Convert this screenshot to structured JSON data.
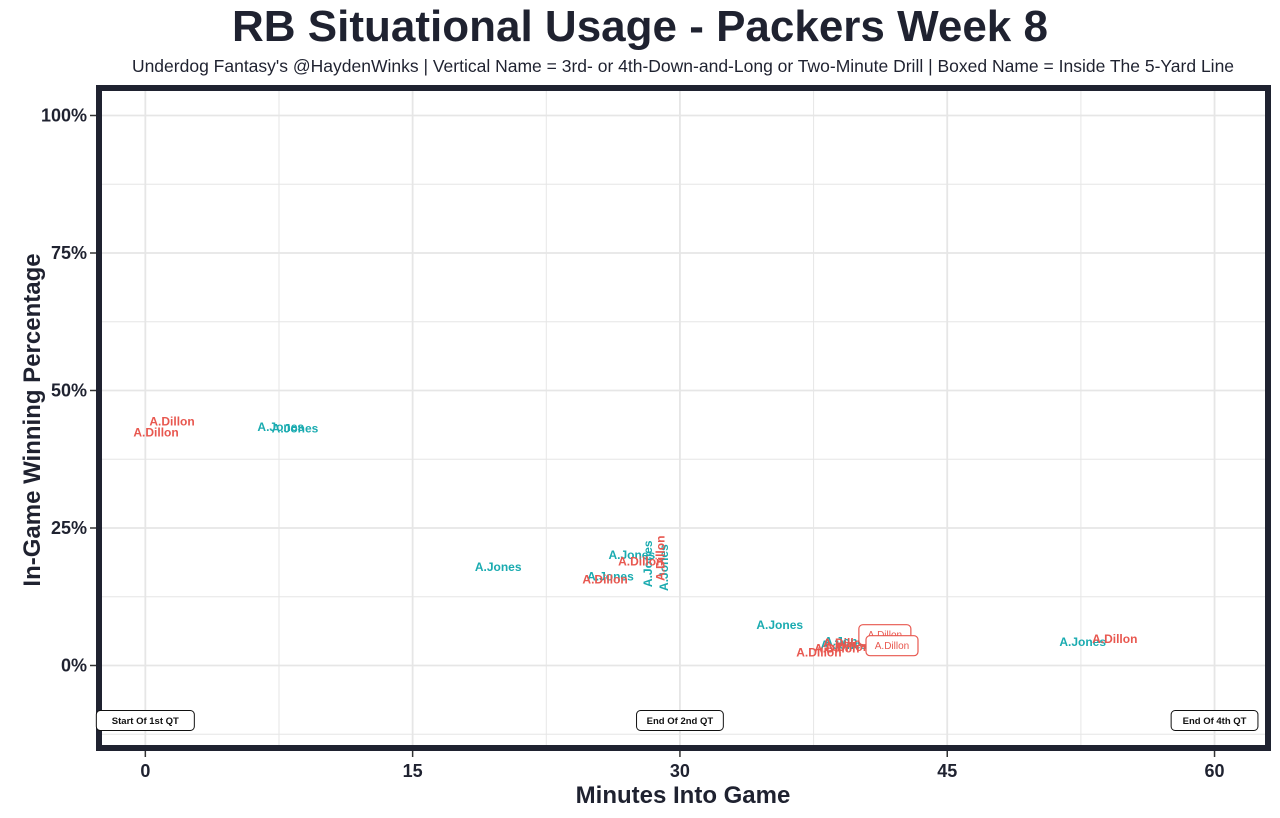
{
  "colors": {
    "jones": "#1aabb0",
    "dillon": "#e8574f",
    "frame": "#1f2230",
    "grid": "#e6e6e6"
  },
  "chart_data": {
    "type": "scatter",
    "title": "RB Situational Usage - Packers Week 8",
    "subtitle": "Underdog Fantasy's @HaydenWinks | Vertical Name = 3rd- or 4th-Down-and-Long or Two-Minute Drill | Boxed Name = Inside The 5-Yard Line",
    "xlabel": "Minutes Into Game",
    "ylabel": "In-Game Winning Percentage",
    "xlim": [
      -2.6,
      63.0
    ],
    "ylim": [
      -15,
      105
    ],
    "xticks": [
      0,
      15,
      30,
      45,
      60
    ],
    "xtick_labels": [
      "0",
      "15",
      "30",
      "45",
      "60"
    ],
    "yticks": [
      0,
      25,
      50,
      75,
      100
    ],
    "ytick_labels": [
      "0%",
      "25%",
      "50%",
      "75%",
      "100%"
    ],
    "grid": true,
    "series": [
      {
        "name": "A.Jones",
        "color": "#1aabb0",
        "points": [
          {
            "x": 7.6,
            "y": 43.5,
            "label": "A.Jones",
            "style": "normal"
          },
          {
            "x": 8.4,
            "y": 43.2,
            "label": "A.Jones",
            "style": "normal"
          },
          {
            "x": 19.8,
            "y": 18.0,
            "label": "A.Jones",
            "style": "normal"
          },
          {
            "x": 27.3,
            "y": 20.2,
            "label": "A.Jones",
            "style": "normal"
          },
          {
            "x": 26.1,
            "y": 16.3,
            "label": "A.Jones",
            "style": "normal"
          },
          {
            "x": 28.2,
            "y": 18.5,
            "label": "A.Jones",
            "style": "vertical"
          },
          {
            "x": 29.1,
            "y": 17.8,
            "label": "A.Jones",
            "style": "vertical"
          },
          {
            "x": 35.6,
            "y": 7.5,
            "label": "A.Jones",
            "style": "normal"
          },
          {
            "x": 39.4,
            "y": 4.5,
            "label": "A.Jones",
            "style": "normal"
          },
          {
            "x": 39.2,
            "y": 3.8,
            "label": "A.Jones",
            "style": "normal"
          },
          {
            "x": 52.6,
            "y": 4.4,
            "label": "A.Jones",
            "style": "normal"
          }
        ]
      },
      {
        "name": "A.Dillon",
        "color": "#e8574f",
        "points": [
          {
            "x": 1.5,
            "y": 44.5,
            "label": "A.Dillon",
            "style": "normal"
          },
          {
            "x": 0.6,
            "y": 42.5,
            "label": "A.Dillon",
            "style": "normal"
          },
          {
            "x": 25.8,
            "y": 15.7,
            "label": "A.Dillon",
            "style": "normal"
          },
          {
            "x": 27.8,
            "y": 19.0,
            "label": "A.Dillon",
            "style": "normal"
          },
          {
            "x": 28.9,
            "y": 19.5,
            "label": "A.Dillon",
            "style": "vertical"
          },
          {
            "x": 37.8,
            "y": 2.5,
            "label": "A.Dillon",
            "style": "normal"
          },
          {
            "x": 38.8,
            "y": 3.2,
            "label": "A.Dillon",
            "style": "normal"
          },
          {
            "x": 39.3,
            "y": 4.2,
            "label": "A.Dillon",
            "style": "normal"
          },
          {
            "x": 39.4,
            "y": 3.5,
            "label": "A.Dillon",
            "style": "normal"
          },
          {
            "x": 41.5,
            "y": 5.6,
            "label": "A.Dillon",
            "style": "boxed"
          },
          {
            "x": 41.9,
            "y": 3.6,
            "label": "A.Dillon",
            "style": "boxed"
          },
          {
            "x": 54.4,
            "y": 4.9,
            "label": "A.Dillon",
            "style": "normal"
          }
        ]
      }
    ],
    "annotations": [
      {
        "x": 0,
        "y": -10,
        "text": "Start Of 1st QT"
      },
      {
        "x": 30,
        "y": -10,
        "text": "End Of 2nd QT"
      },
      {
        "x": 60,
        "y": -10,
        "text": "End Of 4th QT"
      }
    ]
  }
}
